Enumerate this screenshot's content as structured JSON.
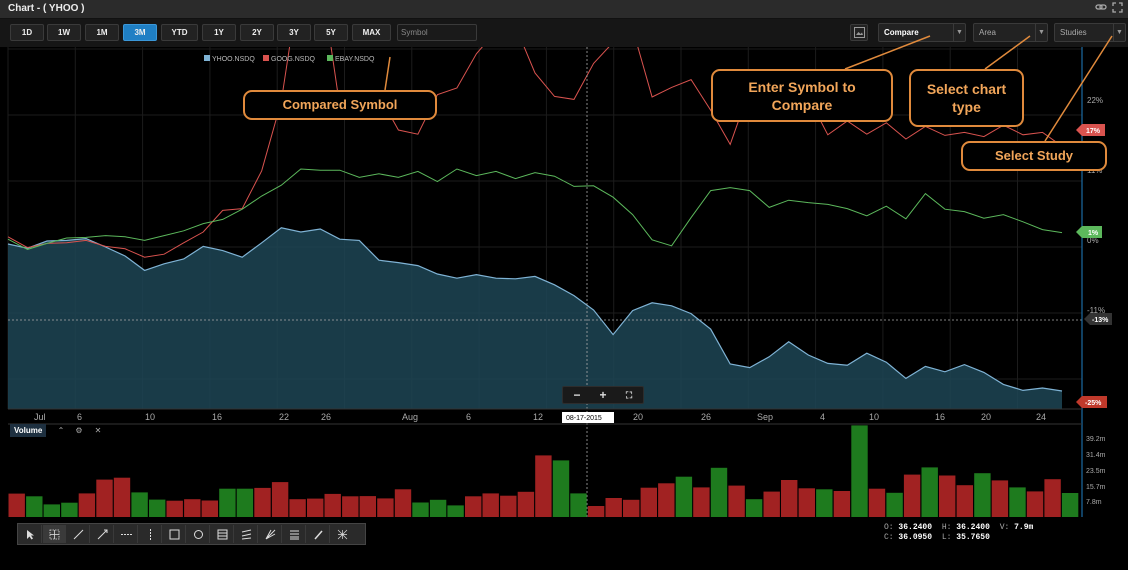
{
  "window": {
    "title": "Chart - ( YHOO )"
  },
  "toolbar": {
    "ranges": [
      "1D",
      "1W",
      "1M",
      "3M",
      "YTD",
      "1Y",
      "2Y",
      "3Y",
      "5Y",
      "MAX"
    ],
    "active_range": "3M",
    "symbol_placeholder": "Symbol",
    "compare_label": "Compare",
    "chart_type_label": "Area",
    "studies_label": "Studies"
  },
  "icons": {
    "titlebar": [
      "link-icon",
      "expand-icon"
    ],
    "volume_header": [
      "collapse-icon",
      "gear-icon",
      "close-icon"
    ],
    "zoom": [
      "zoom-out-icon",
      "zoom-in-icon",
      "fit-icon"
    ],
    "drawing_tools": [
      "pointer-icon",
      "crosshair-icon",
      "line-icon",
      "ray-icon",
      "horizontal-line-icon",
      "vertical-line-icon",
      "rectangle-icon",
      "ellipse-icon",
      "fibonacci-icon",
      "channel-icon",
      "gann-fan-icon",
      "fib-fan-icon",
      "freeform-icon",
      "text-icon"
    ]
  },
  "colors": {
    "YHOO": "#7fb3d5",
    "GOOG": "#d9534f",
    "EBAY": "#5cb85c",
    "active_button": "#1f7fc4",
    "callout": "#e08a3c",
    "volume_up": "#1e7b1e",
    "volume_down": "#a12222"
  },
  "chart": {
    "legend": [
      {
        "name": "YHOO.NSDQ",
        "color": "#7fb3d5"
      },
      {
        "name": "GOOG.NSDQ",
        "color": "#d9534f"
      },
      {
        "name": "EBAY.NSDQ",
        "color": "#5cb85c"
      }
    ],
    "crosshair_date": "08-17-2015",
    "y_axis_labels": [
      "22%",
      "11%",
      "0%",
      "-11%"
    ],
    "last_badges": [
      {
        "text": "17%",
        "color": "#d9534f"
      },
      {
        "text": "1%",
        "color": "#5cb85c"
      },
      {
        "text": "-13%",
        "color": "#333333"
      },
      {
        "text": "-25%",
        "color": "#c0392b"
      }
    ],
    "x_axis_labels": [
      "Jul",
      "6",
      "10",
      "16",
      "22",
      "26",
      "Aug",
      "6",
      "12",
      "20",
      "26",
      "Sep",
      "4",
      "10",
      "16",
      "20",
      "24"
    ],
    "volume_label": "Volume",
    "volume_axis_labels": [
      "39.2m",
      "31.4m",
      "23.5m",
      "15.7m",
      "7.8m"
    ]
  },
  "ohlc": {
    "open_label": "O:",
    "open": "36.2400",
    "high_label": "H:",
    "high": "36.2400",
    "vol_label": "V:",
    "vol": "7.9m",
    "close_label": "C:",
    "close": "36.0950",
    "low_label": "L:",
    "low": "35.7650"
  },
  "callouts": {
    "compared_symbol": "Compared Symbol",
    "enter_symbol_line1": "Enter Symbol to",
    "enter_symbol_line2": "Compare",
    "select_chart_line1": "Select chart",
    "select_chart_line2": "type",
    "select_study": "Select Study"
  },
  "chart_data": {
    "type": "area",
    "x_range": [
      "Jul 1",
      "Sep 24"
    ],
    "ylim": [
      -27,
      32
    ],
    "grid": true,
    "legend_position": "top-left",
    "series": [
      {
        "name": "YHOO.NSDQ",
        "type": "area",
        "values": [
          0.5,
          -0.2,
          1.0,
          1.1,
          1.4,
          0.0,
          -1.5,
          -3.9,
          -2.8,
          -2.0,
          0.1,
          -0.6,
          -1.7,
          0.7,
          3.2,
          2.5,
          3.0,
          1.3,
          1.1,
          -2.2,
          -2.6,
          -3.1,
          -4.5,
          -5.2,
          -4.6,
          -5.2,
          -5.3,
          -4.9,
          -6.3,
          -8.1,
          -10.5,
          -14.6,
          -10.6,
          -9.3,
          -9.8,
          -11.1,
          -13.7,
          -19.5,
          -20.1,
          -18.3,
          -15.8,
          -18.0,
          -19.4,
          -19.7,
          -17.7,
          -19.2,
          -21.9,
          -19.9,
          -20.8,
          -19.6,
          -20.9,
          -22.9,
          -23.9,
          -23.5,
          -24.0
        ]
      },
      {
        "name": "GOOG.NSDQ",
        "type": "line",
        "values": [
          1.7,
          -0.1,
          0.6,
          0.7,
          1.1,
          0.1,
          -0.3,
          -1.7,
          -1.2,
          0.7,
          2.5,
          6.1,
          6.4,
          12.7,
          24.3,
          45.6,
          45.6,
          23.4,
          23.6,
          25.3,
          19.5,
          18.8,
          25.4,
          26.5,
          32.2,
          36.0,
          36.8,
          29.0,
          25.1,
          24.6,
          30.6,
          34.1,
          36.4,
          25.0,
          26.6,
          27.9,
          22.8,
          17.1,
          26.3,
          25.2,
          22.1,
          25.0,
          18.7,
          21.0,
          18.8,
          20.7,
          18.0,
          20.1,
          18.6,
          19.1,
          18.4,
          20.3,
          18.7,
          19.1,
          16.8
        ]
      },
      {
        "name": "EBAY.NSDQ",
        "type": "line",
        "values": [
          1.3,
          -0.4,
          0.6,
          1.5,
          1.6,
          1.9,
          1.7,
          1.1,
          1.9,
          2.7,
          3.9,
          4.6,
          6.3,
          8.5,
          10.3,
          13.0,
          12.8,
          12.8,
          11.6,
          12.2,
          11.6,
          12.6,
          10.9,
          13.0,
          11.9,
          12.6,
          11.4,
          12.4,
          11.8,
          10.1,
          10.2,
          8.3,
          5.4,
          1.2,
          0.2,
          4.9,
          9.4,
          9.9,
          9.4,
          6.6,
          7.8,
          7.4,
          7.1,
          6.4,
          5.2,
          6.8,
          4.7,
          8.9,
          6.3,
          5.9,
          4.8,
          5.4,
          4.2,
          2.9,
          2.4
        ]
      }
    ],
    "volume": {
      "ylim": [
        0,
        45
      ],
      "values": [
        11.3,
        10.0,
        6.1,
        6.9,
        11.4,
        18.1,
        19.0,
        11.9,
        8.4,
        7.9,
        8.6,
        8.0,
        13.7,
        13.7,
        14.1,
        16.9,
        8.6,
        8.9,
        11.2,
        10.0,
        10.1,
        9.0,
        13.4,
        7.0,
        8.3,
        5.6,
        10.0,
        11.4,
        10.3,
        12.2,
        29.8,
        27.4,
        11.4,
        5.3,
        9.2,
        8.3,
        14.2,
        16.3,
        19.5,
        14.3,
        23.8,
        15.2,
        8.6,
        12.3,
        17.9,
        13.9,
        13.4,
        12.6,
        44.3,
        13.7,
        11.7,
        20.5,
        24.0,
        20.1,
        15.4,
        21.2,
        17.7,
        14.3,
        12.4,
        18.3,
        11.6
      ],
      "colors": [
        "down",
        "up",
        "up",
        "up",
        "down",
        "down",
        "down",
        "up",
        "up",
        "down",
        "down",
        "down",
        "up",
        "up",
        "down",
        "down",
        "down",
        "down",
        "down",
        "down",
        "down",
        "down",
        "down",
        "up",
        "up",
        "up",
        "down",
        "down",
        "down",
        "down",
        "down",
        "up",
        "up",
        "down",
        "down",
        "down",
        "down",
        "down",
        "up",
        "down",
        "up",
        "down",
        "up",
        "down",
        "down",
        "down",
        "up",
        "down",
        "up",
        "down",
        "up",
        "down",
        "up",
        "down",
        "down",
        "up",
        "down",
        "up",
        "down",
        "down",
        "up"
      ]
    }
  }
}
